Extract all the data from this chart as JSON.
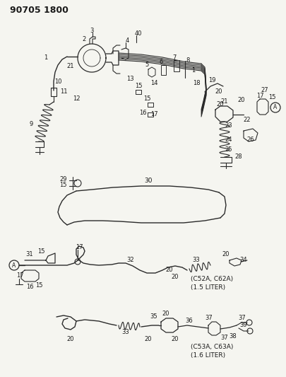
{
  "title": "90705 1800",
  "bg_color": "#f5f5f0",
  "text_color": "#1a1a1a",
  "line_color": "#2a2a2a",
  "fig_width": 4.05,
  "fig_height": 5.33,
  "dpi": 100,
  "subtitle1": "(C52A, C62A)",
  "subtitle2": "(1.5 LITER)",
  "subtitle3": "(C53A, C63A)",
  "subtitle4": "(1.6 LITER)"
}
